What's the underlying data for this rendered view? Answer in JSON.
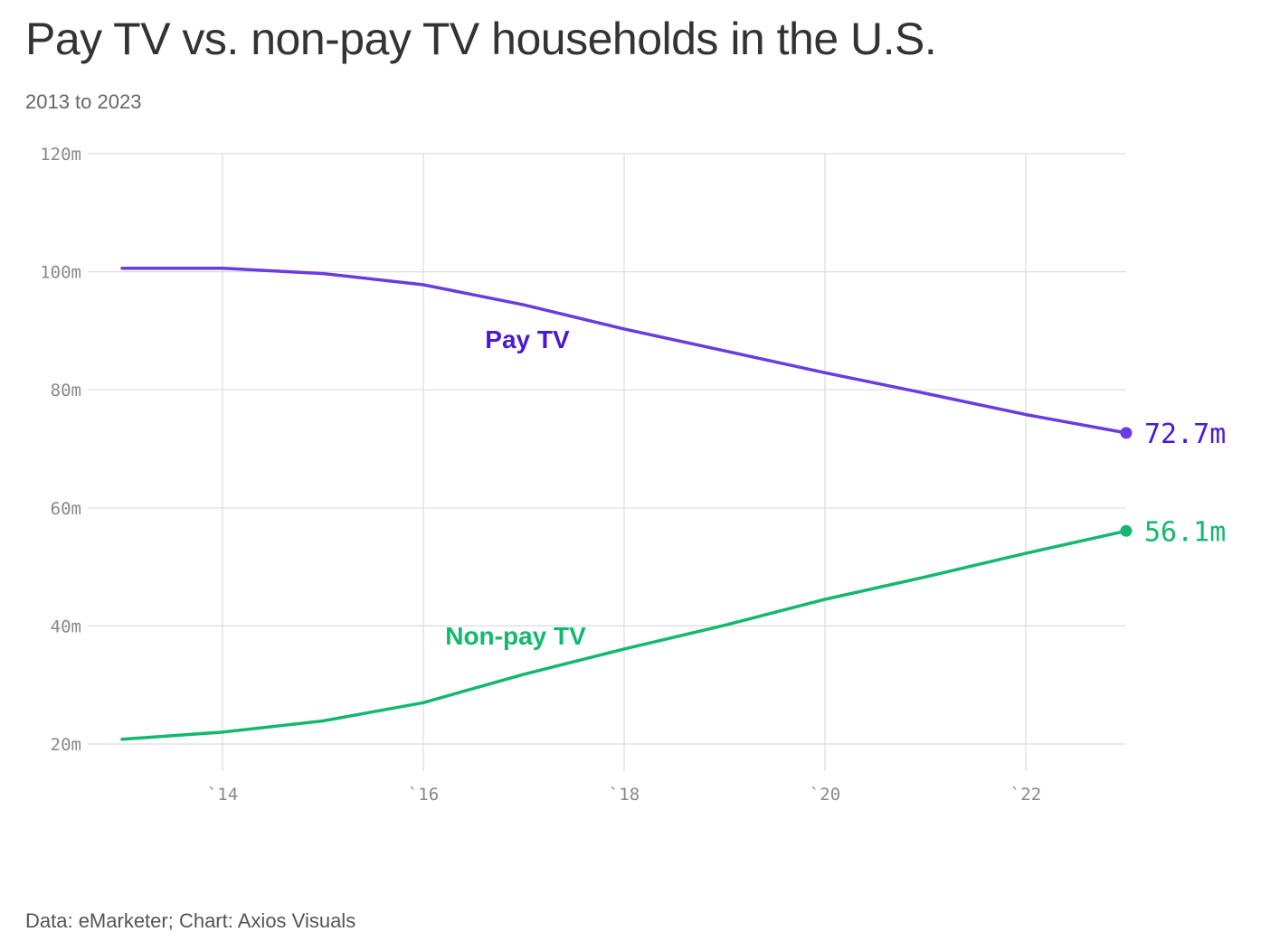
{
  "title": "Pay TV vs. non-pay TV households in the U.S.",
  "subtitle": "2013 to 2023",
  "source": "Data: eMarketer; Chart: Axios Visuals",
  "colors": {
    "pay_tv": "#6a3be0",
    "pay_tv_label": "#4b19d6",
    "non_pay_tv": "#13b86e",
    "grid": "#dddddd"
  },
  "chart_data": {
    "type": "line",
    "x": [
      2013,
      2014,
      2015,
      2016,
      2017,
      2018,
      2019,
      2020,
      2021,
      2022,
      2023
    ],
    "series": [
      {
        "name": "Pay TV",
        "values": [
          100.6,
          100.6,
          99.7,
          97.8,
          94.4,
          90.3,
          86.6,
          82.9,
          79.4,
          75.8,
          72.7
        ],
        "end_label": "72.7m"
      },
      {
        "name": "Non-pay TV",
        "values": [
          20.8,
          22.0,
          23.9,
          27.0,
          31.8,
          36.1,
          40.1,
          44.5,
          48.3,
          52.3,
          56.1
        ],
        "end_label": "56.1m"
      }
    ],
    "xlim": [
      2012.5,
      2023
    ],
    "ylim": [
      20,
      120
    ],
    "y_ticks": [
      20,
      40,
      60,
      80,
      100,
      120
    ],
    "y_tick_labels": [
      "20m",
      "40m",
      "60m",
      "80m",
      "100m",
      "120m"
    ],
    "x_ticks": [
      2014,
      2016,
      2018,
      2020,
      2022
    ],
    "x_tick_labels": [
      "`14",
      "`16",
      "`18",
      "`20",
      "`22"
    ],
    "grid": true,
    "legend": "inline labels"
  }
}
